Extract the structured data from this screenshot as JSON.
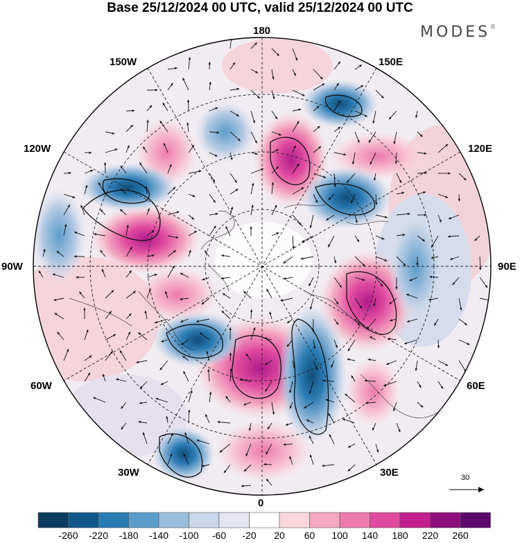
{
  "title": "Base 25/12/2024 00 UTC, valid 25/12/2024 00 UTC",
  "brand": "MODES",
  "brand_mark": "©",
  "longitude_labels": {
    "top": "180",
    "bottom": "0",
    "left": "90W",
    "right": "90E",
    "upper_left_outer": "150W",
    "upper_left_inner": "120W",
    "upper_right_outer": "150E",
    "upper_right_inner": "120E",
    "lower_left_inner": "60W",
    "lower_left_outer": "30W",
    "lower_right_inner": "60E",
    "lower_right_outer": "30E"
  },
  "reference_vector": {
    "label": "30"
  },
  "colorbar": {
    "labels": [
      "-260",
      "-220",
      "-180",
      "-140",
      "-100",
      "-60",
      "-20",
      "20",
      "60",
      "100",
      "140",
      "180",
      "220",
      "260"
    ],
    "colors": [
      "#0c3b5e",
      "#10588a",
      "#2b7bb3",
      "#5b9ccb",
      "#9bbddc",
      "#c9d5e8",
      "#e6e6f2",
      "#ffffff",
      "#fad7dc",
      "#f4a8c0",
      "#ec7aad",
      "#df4a9f",
      "#c21e8e",
      "#8e0f7c",
      "#5c0a6b"
    ]
  }
}
